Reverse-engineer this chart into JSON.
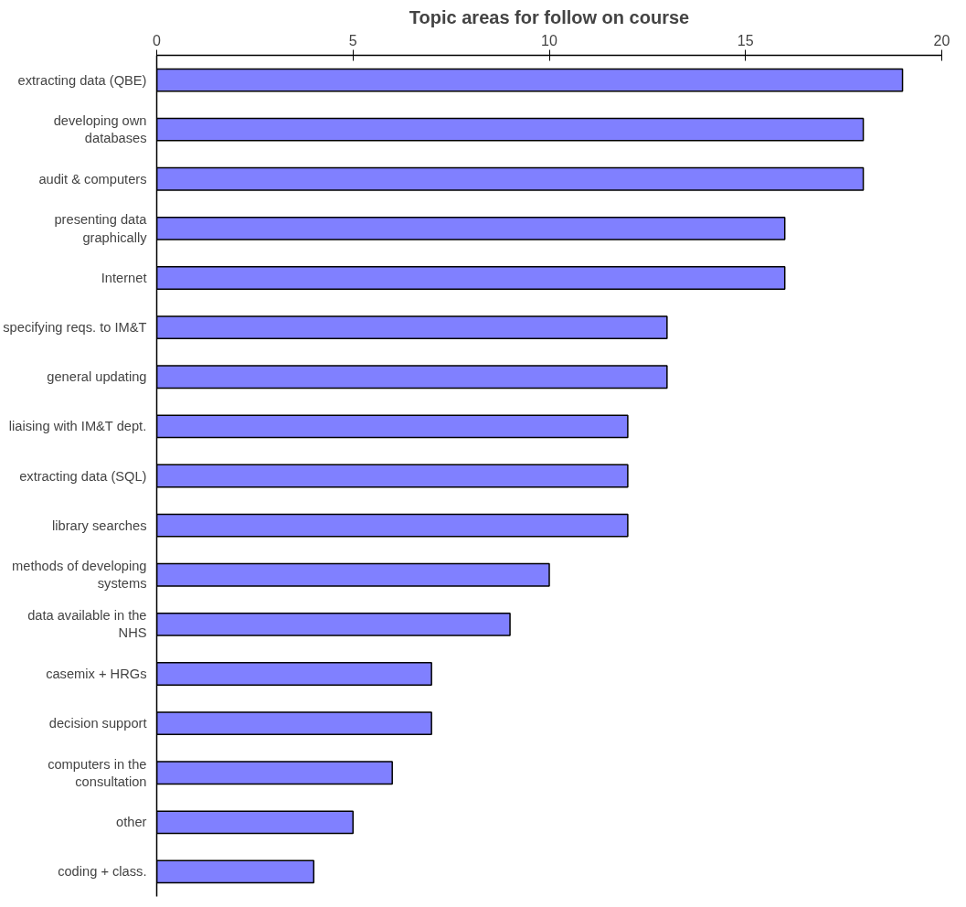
{
  "chart_data": {
    "type": "bar",
    "orientation": "horizontal",
    "title": "Topic areas for follow on course",
    "categories": [
      "extracting data (QBE)",
      "developing own\ndatabases",
      "audit & computers",
      "presenting data\ngraphically",
      "Internet",
      "specifying reqs. to IM&T",
      "general updating",
      "liaising with IM&T dept.",
      "extracting data (SQL)",
      "library searches",
      "methods of developing\nsystems",
      "data available in the\nNHS",
      "casemix + HRGs",
      "decision support",
      "computers in the\nconsultation",
      "other",
      "coding + class."
    ],
    "values": [
      19,
      18,
      18,
      16,
      16,
      13,
      13,
      12,
      12,
      12,
      10,
      9,
      7,
      7,
      6,
      5,
      4
    ],
    "color": "#8080ff",
    "xlim": [
      0,
      20
    ],
    "xticks": [
      0,
      5,
      10,
      15,
      20
    ],
    "grid": false
  }
}
